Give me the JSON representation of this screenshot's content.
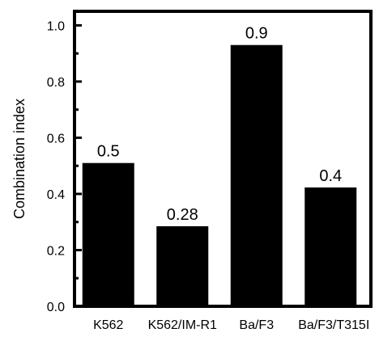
{
  "chart_data": {
    "type": "bar",
    "categories": [
      "K562",
      "K562/IM-R1",
      "Ba/F3",
      "Ba/F3/T315I"
    ],
    "values": [
      0.51,
      0.285,
      0.93,
      0.423
    ],
    "data_labels": [
      "0.5",
      "0.28",
      "0.9",
      "0.4"
    ],
    "ylabel": "Combination index",
    "xlabel": "",
    "ylim": [
      0,
      1.05
    ],
    "yticks": [
      0.0,
      0.2,
      0.4,
      0.6,
      0.8,
      1.0
    ],
    "ytick_labels": [
      "0.0",
      "0.2",
      "0.4",
      "0.6",
      "0.8",
      "1.0"
    ],
    "bar_color": "#000000",
    "grid": false
  }
}
